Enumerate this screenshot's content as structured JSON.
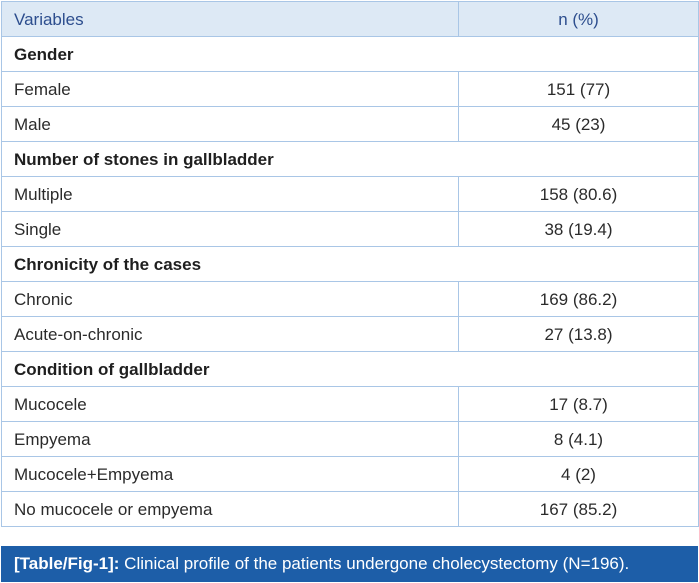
{
  "table": {
    "header": {
      "variables": "Variables",
      "n_pct": "n (%)"
    },
    "groups": [
      {
        "title": "Gender",
        "rows": [
          {
            "label": "Female",
            "value": "151 (77)"
          },
          {
            "label": "Male",
            "value": "45 (23)"
          }
        ]
      },
      {
        "title": "Number of stones in gallbladder",
        "rows": [
          {
            "label": "Multiple",
            "value": "158 (80.6)"
          },
          {
            "label": "Single",
            "value": "38 (19.4)"
          }
        ]
      },
      {
        "title": "Chronicity of the cases",
        "rows": [
          {
            "label": "Chronic",
            "value": "169 (86.2)"
          },
          {
            "label": "Acute-on-chronic",
            "value": "27 (13.8)"
          }
        ]
      },
      {
        "title": "Condition of gallbladder",
        "rows": [
          {
            "label": "Mucocele",
            "value": "17 (8.7)"
          },
          {
            "label": "Empyema",
            "value": "8 (4.1)"
          },
          {
            "label": "Mucocele+Empyema",
            "value": "4 (2)"
          },
          {
            "label": "No mucocele or empyema",
            "value": "167 (85.2)"
          }
        ]
      }
    ]
  },
  "caption": {
    "ref": "[Table/Fig-1]:",
    "text": " Clinical profile of the patients undergone cholecystectomy (N=196)."
  },
  "colors": {
    "header_bg": "#dde9f5",
    "header_text": "#2d4e8e",
    "border": "#a9c6e6",
    "caption_bg": "#1d5ea8"
  }
}
